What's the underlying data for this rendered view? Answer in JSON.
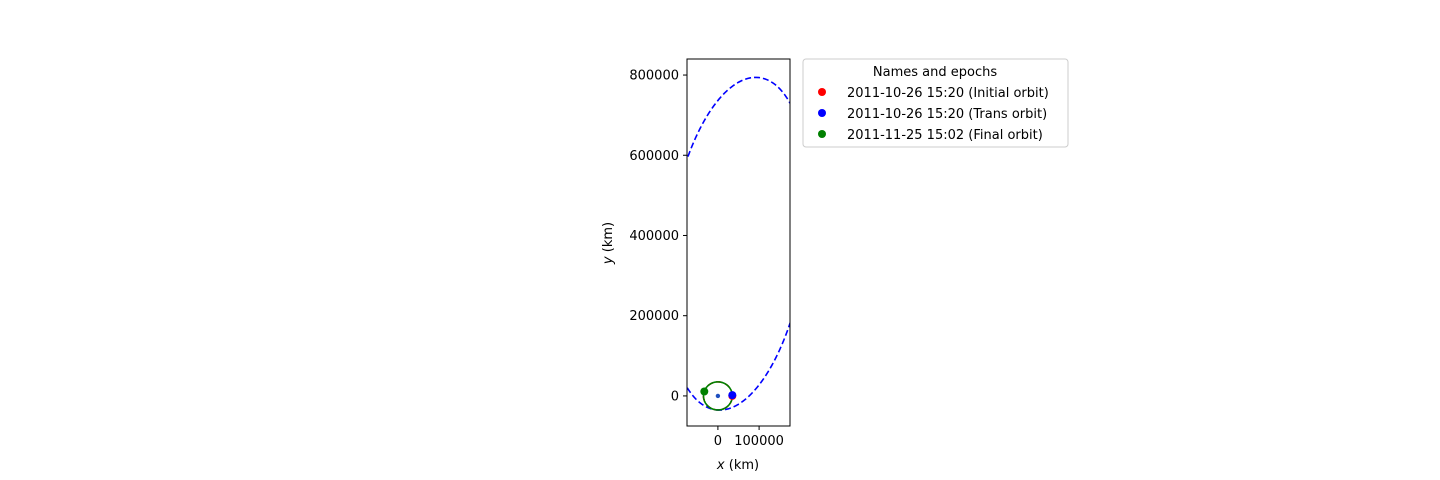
{
  "chart_data": {
    "type": "line",
    "xlabel": "x (km)",
    "ylabel": "y (km)",
    "xlabel_var": "x",
    "xlabel_unit": " (km)",
    "ylabel_var": "y",
    "ylabel_unit": " (km)",
    "xlim": [
      -75000,
      175000
    ],
    "ylim": [
      -75000,
      840000
    ],
    "x_ticks": [
      0,
      100000
    ],
    "x_tick_labels": [
      "0",
      "100000"
    ],
    "y_ticks": [
      0,
      200000,
      400000,
      600000,
      800000
    ],
    "y_tick_labels": [
      "0",
      "200000",
      "400000",
      "600000",
      "800000"
    ],
    "grid": false,
    "attractor": {
      "x": 0,
      "y": 0,
      "color": "#1f4fbf"
    },
    "series": [
      {
        "name": "2011-10-26 15:20 (Initial orbit)",
        "color": "#ff0000",
        "linestyle": "dashed",
        "orbit": {
          "a": 35000,
          "e": 0.0,
          "omega_deg": 0
        },
        "marker": {
          "x": 35000,
          "y": 0
        }
      },
      {
        "name": "2011-10-26 15:20 (Trans orbit)",
        "color": "#0000ff",
        "linestyle": "dashed",
        "orbit": {
          "a": 417500,
          "e": 0.916,
          "omega_deg": -97.2
        },
        "marker": {
          "x": 35000,
          "y": 2000
        }
      },
      {
        "name": "2011-11-25 15:02 (Final orbit)",
        "color": "#008000",
        "linestyle": "solid",
        "orbit": {
          "a": 35000,
          "e": 0.0,
          "omega_deg": 0
        },
        "marker": {
          "x": -33000,
          "y": 11000
        }
      }
    ],
    "legend": {
      "title": "Names and epochs",
      "placement": "outside-upper-right"
    }
  }
}
